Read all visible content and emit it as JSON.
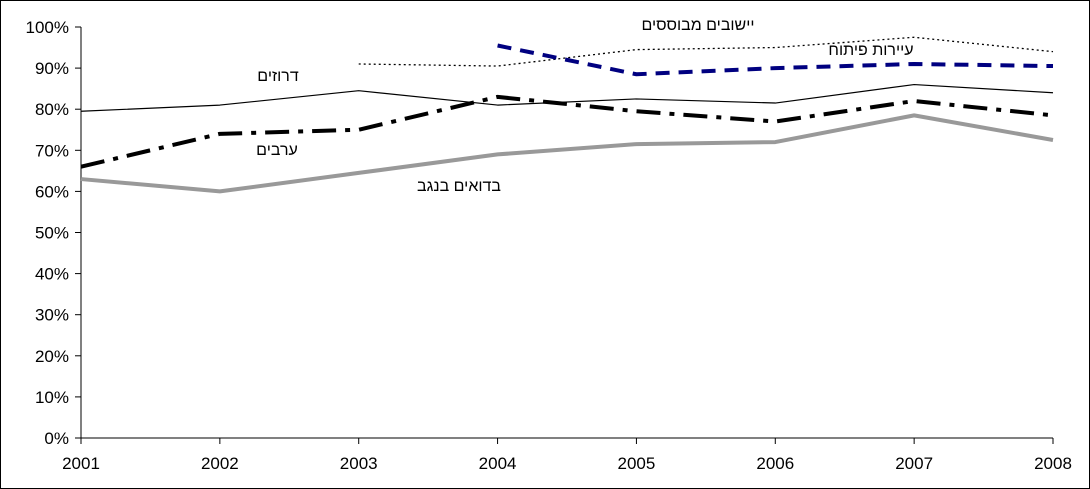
{
  "chart_data": {
    "type": "line",
    "x": [
      "2001",
      "2002",
      "2003",
      "2004",
      "2005",
      "2006",
      "2007",
      "2008"
    ],
    "ylim": [
      0,
      100
    ],
    "y_ticks": [
      "0%",
      "10%",
      "20%",
      "30%",
      "40%",
      "50%",
      "60%",
      "70%",
      "80%",
      "90%",
      "100%"
    ],
    "grid": false,
    "series": [
      {
        "name": "יישובים מבוססים",
        "color": "#000000",
        "style": "dotted",
        "values": [
          null,
          null,
          91.0,
          90.5,
          94.5,
          95.0,
          97.5,
          94.0
        ]
      },
      {
        "name": "עיירות פיתוח",
        "color": "#000080",
        "style": "dashed",
        "values": [
          null,
          null,
          null,
          95.5,
          88.5,
          90.0,
          91.0,
          90.5
        ]
      },
      {
        "name": "דרוזים",
        "color": "#000000",
        "style": "solid-thin",
        "values": [
          79.5,
          81.0,
          84.5,
          81.0,
          82.5,
          81.5,
          86.0,
          84.0
        ]
      },
      {
        "name": "ערבים",
        "color": "#000000",
        "style": "dash-dot",
        "values": [
          66.0,
          74.0,
          75.0,
          83.0,
          79.5,
          77.0,
          82.0,
          78.5
        ]
      },
      {
        "name": "בדואים בנגב",
        "color": "#999999",
        "style": "solid-thick",
        "values": [
          63.0,
          60.0,
          64.5,
          69.0,
          71.5,
          72.0,
          78.5,
          72.5
        ]
      }
    ]
  }
}
